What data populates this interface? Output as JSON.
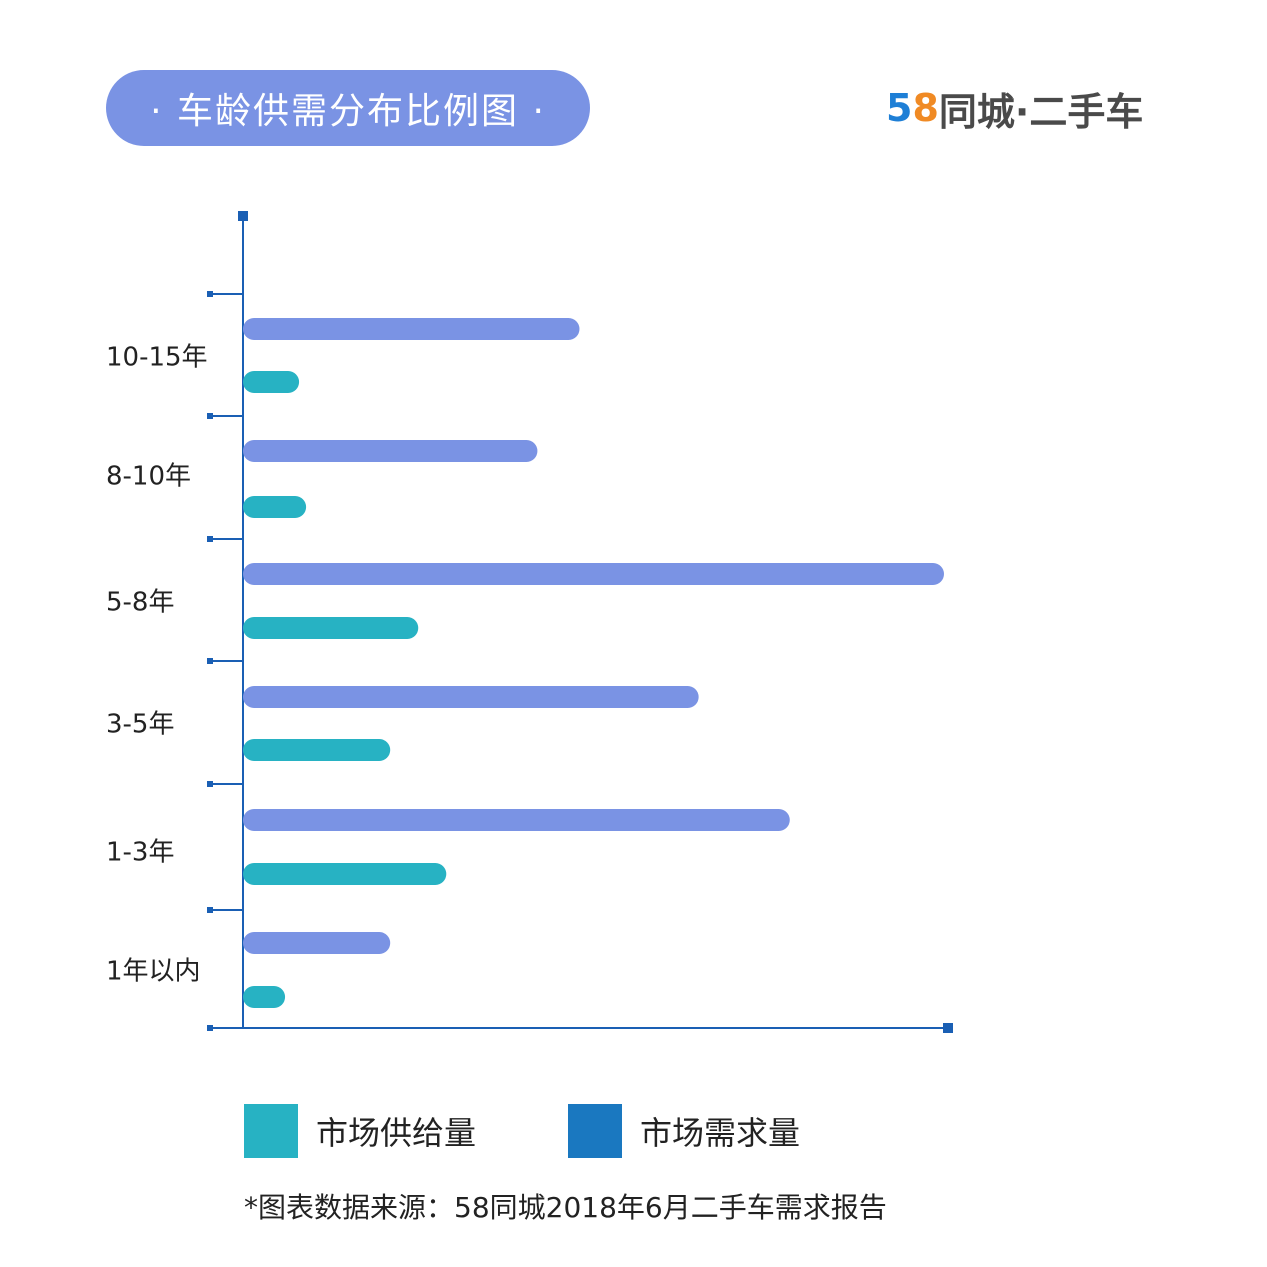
{
  "title": "· 车龄供需分布比例图 ·",
  "logo": {
    "digit_5": "5",
    "digit_8": "8",
    "text": "同城·二手车"
  },
  "colors": {
    "supply": "#27b2c3",
    "demand_bar": "#7a93e4",
    "demand_legend": "#1a78c0",
    "axis": "#1a5fb4"
  },
  "chart_data": {
    "type": "bar",
    "orientation": "horizontal",
    "categories": [
      "10-15年",
      "8-10年",
      "5-8年",
      "3-5年",
      "1-3年",
      "1年以内"
    ],
    "series": [
      {
        "name": "市场需求量",
        "values": [
          48,
          42,
          100,
          65,
          78,
          21
        ]
      },
      {
        "name": "市场供给量",
        "values": [
          8,
          9,
          25,
          21,
          29,
          6
        ]
      }
    ],
    "xlim": [
      0,
      100
    ],
    "grid": false,
    "legend": "bottom"
  },
  "legend": {
    "supply": "市场供给量",
    "demand": "市场需求量"
  },
  "source": "*图表数据来源：58同城2018年6月二手车需求报告"
}
